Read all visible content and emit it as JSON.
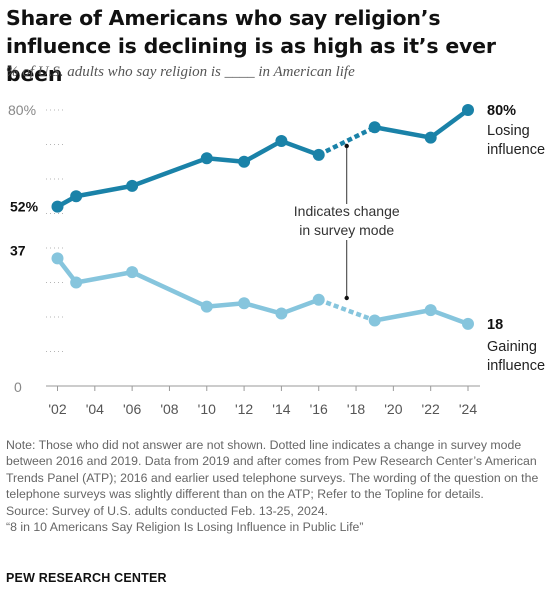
{
  "title": "Share of Americans who say religion’s influence is declining is as high as it’s ever been",
  "subtitle": "% of U.S. adults who say religion is ____ in American life",
  "chart_data": {
    "type": "line",
    "x_ticks": [
      "'02",
      "'04",
      "'06",
      "'08",
      "'10",
      "'12",
      "'14",
      "'16",
      "'18",
      "'20",
      "'22",
      "'24"
    ],
    "ylim": [
      0,
      80
    ],
    "y_ticks": [
      "0",
      "80%"
    ],
    "grid": "dotted",
    "series": [
      {
        "name": "Losing influence",
        "color": "#1a82a8",
        "points": [
          {
            "x": 2002,
            "y": 52
          },
          {
            "x": 2003,
            "y": 55
          },
          {
            "x": 2006,
            "y": 58
          },
          {
            "x": 2010,
            "y": 66
          },
          {
            "x": 2012,
            "y": 65
          },
          {
            "x": 2014,
            "y": 71
          },
          {
            "x": 2016,
            "y": 67
          },
          {
            "x": 2019,
            "y": 75
          },
          {
            "x": 2022,
            "y": 72
          },
          {
            "x": 2024,
            "y": 80
          }
        ],
        "first_label": "52%",
        "last_label": "80%",
        "end_label": [
          "Losing",
          "influence"
        ]
      },
      {
        "name": "Gaining influence",
        "color": "#86c5dd",
        "points": [
          {
            "x": 2002,
            "y": 37
          },
          {
            "x": 2003,
            "y": 30
          },
          {
            "x": 2006,
            "y": 33
          },
          {
            "x": 2010,
            "y": 23
          },
          {
            "x": 2012,
            "y": 24
          },
          {
            "x": 2014,
            "y": 21
          },
          {
            "x": 2016,
            "y": 25
          },
          {
            "x": 2019,
            "y": 19
          },
          {
            "x": 2022,
            "y": 22
          },
          {
            "x": 2024,
            "y": 18
          }
        ],
        "first_label": "37",
        "last_label": "18",
        "end_label": [
          "Gaining",
          "influence"
        ]
      }
    ],
    "mode_change": {
      "from": 2016,
      "to": 2019,
      "marker_x": 2017.5
    },
    "annotation": [
      "Indicates change",
      "in survey mode"
    ]
  },
  "notes": [
    "Note: Those who did not answer are not shown. Dotted line indicates a change in survey mode between 2016 and 2019. Data from 2019 and after comes from Pew Research Center’s American Trends Panel (ATP); 2016 and earlier used telephone surveys. The wording of the question on the telephone surveys was slightly different than on the ATP; Refer to the Topline for details.",
    "Source: Survey of U.S. adults conducted Feb. 13-25, 2024.",
    "“8 in 10 Americans Say Religion Is Losing Influence in Public Life”"
  ],
  "brand": "PEW RESEARCH CENTER"
}
